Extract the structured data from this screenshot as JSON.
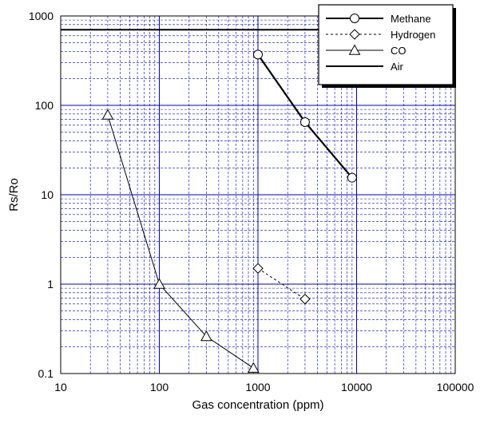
{
  "chart_data": {
    "type": "line",
    "xlabel": "Gas concentration (ppm)",
    "ylabel": "Rs/Ro",
    "xscale": "log",
    "yscale": "log",
    "xlim": [
      10,
      100000
    ],
    "ylim": [
      0.1,
      1000
    ],
    "grid": true,
    "legend_position": "top-right",
    "xticks": [
      "10",
      "100",
      "1000",
      "10000",
      "100000"
    ],
    "yticks": [
      "0.1",
      "1",
      "10",
      "100",
      "1000"
    ],
    "series": [
      {
        "name": "Methane",
        "marker": "circle",
        "dash": "solid",
        "width": 2.2,
        "points": [
          [
            1000,
            370
          ],
          [
            3000,
            65
          ],
          [
            9000,
            15.5
          ]
        ]
      },
      {
        "name": "Hydrogen",
        "marker": "diamond",
        "dash": "dashed",
        "width": 1,
        "points": [
          [
            1000,
            1.5
          ],
          [
            3000,
            0.68
          ]
        ]
      },
      {
        "name": "CO",
        "marker": "triangle",
        "dash": "solid",
        "width": 1,
        "points": [
          [
            30,
            78
          ],
          [
            100,
            1.0
          ],
          [
            300,
            0.26
          ],
          [
            900,
            0.115
          ]
        ]
      },
      {
        "name": "Air",
        "marker": "none",
        "dash": "solid",
        "width": 2,
        "points": [
          [
            10,
            700
          ],
          [
            100000,
            700
          ]
        ]
      }
    ],
    "colors": {
      "grid": "#0000cc",
      "line": "#000000",
      "marker_fill": "#ffffff"
    }
  }
}
